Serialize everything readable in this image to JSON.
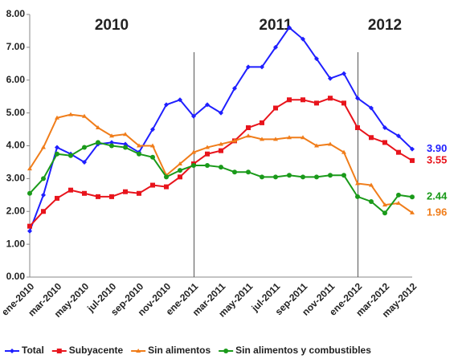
{
  "chart_data": {
    "type": "line",
    "categories": [
      "ene-2010",
      null,
      "mar-2010",
      null,
      "may-2010",
      null,
      "jul-2010",
      null,
      "sep-2010",
      null,
      "nov-2010",
      null,
      "ene-2011",
      null,
      "mar-2011",
      null,
      "may-2011",
      null,
      "jul-2011",
      null,
      "sep-2011",
      null,
      "nov-2011",
      null,
      "ene-2012",
      null,
      "mar-2012",
      null,
      "may-2012"
    ],
    "series": [
      {
        "name": "Total",
        "color": "#1f1fff",
        "marker": "diamond",
        "values": [
          1.4,
          2.5,
          3.95,
          3.75,
          3.5,
          4.05,
          4.1,
          4.05,
          3.8,
          4.5,
          5.25,
          5.4,
          4.9,
          5.25,
          5.0,
          5.75,
          6.4,
          6.4,
          7.0,
          7.6,
          7.25,
          6.65,
          6.05,
          6.2,
          5.45,
          5.15,
          4.55,
          4.3,
          3.9
        ],
        "value_labels": [
          null,
          null,
          null,
          null,
          null,
          null,
          null,
          null,
          null,
          null,
          null,
          null,
          null,
          null,
          null,
          null,
          null,
          null,
          null,
          null,
          null,
          null,
          null,
          null,
          null,
          null,
          null,
          null,
          "3.90"
        ]
      },
      {
        "name": "Subyacente",
        "color": "#e8141c",
        "marker": "square",
        "values": [
          1.55,
          2.0,
          2.4,
          2.65,
          2.55,
          2.45,
          2.45,
          2.6,
          2.55,
          2.8,
          2.75,
          3.05,
          3.45,
          3.75,
          3.85,
          4.15,
          4.55,
          4.7,
          5.15,
          5.4,
          5.4,
          5.3,
          5.45,
          5.3,
          4.55,
          4.25,
          4.1,
          3.8,
          3.55
        ],
        "value_labels": [
          null,
          null,
          null,
          null,
          null,
          null,
          null,
          null,
          null,
          null,
          null,
          null,
          null,
          null,
          null,
          null,
          null,
          null,
          null,
          null,
          null,
          null,
          null,
          null,
          null,
          null,
          null,
          null,
          "3.55"
        ]
      },
      {
        "name": "Sin alimentos",
        "color": "#f07d1a",
        "marker": "triangle",
        "values": [
          3.3,
          3.95,
          4.85,
          4.95,
          4.9,
          4.55,
          4.3,
          4.35,
          4.0,
          4.0,
          3.1,
          3.45,
          3.8,
          3.95,
          4.05,
          4.15,
          4.3,
          4.2,
          4.2,
          4.25,
          4.25,
          4.0,
          4.05,
          3.8,
          2.85,
          2.8,
          2.2,
          2.25,
          1.96
        ],
        "value_labels": [
          null,
          null,
          null,
          null,
          null,
          null,
          null,
          null,
          null,
          null,
          null,
          null,
          null,
          null,
          null,
          null,
          null,
          null,
          null,
          null,
          null,
          null,
          null,
          null,
          null,
          null,
          null,
          null,
          "1.96"
        ]
      },
      {
        "name": "Sin alimentos y combustibles",
        "color": "#1a9a1a",
        "marker": "circle",
        "values": [
          2.55,
          3.0,
          3.75,
          3.7,
          3.95,
          4.1,
          4.0,
          3.95,
          3.75,
          3.65,
          3.05,
          3.25,
          3.4,
          3.4,
          3.35,
          3.2,
          3.2,
          3.05,
          3.05,
          3.1,
          3.05,
          3.05,
          3.1,
          3.1,
          2.45,
          2.3,
          1.95,
          2.5,
          2.44
        ],
        "value_labels": [
          null,
          null,
          null,
          null,
          null,
          null,
          null,
          null,
          null,
          null,
          null,
          null,
          null,
          null,
          null,
          null,
          null,
          null,
          null,
          null,
          null,
          null,
          null,
          null,
          null,
          null,
          null,
          null,
          "2.44"
        ]
      }
    ],
    "annotations": [
      "2010",
      "2011",
      "2012"
    ],
    "ylim": [
      0,
      8
    ],
    "yticks": [
      {
        "value": 0,
        "label": "0.00"
      },
      {
        "value": 1,
        "label": "1.00"
      },
      {
        "value": 2,
        "label": "2.00"
      },
      {
        "value": 3,
        "label": "3.00"
      },
      {
        "value": 4,
        "label": "4.00"
      },
      {
        "value": 5,
        "label": "5.00"
      },
      {
        "value": 6,
        "label": "6.00"
      },
      {
        "value": 7,
        "label": "7.00"
      },
      {
        "value": 8,
        "label": "8.00"
      }
    ],
    "grid": false,
    "legend": "bottom"
  }
}
